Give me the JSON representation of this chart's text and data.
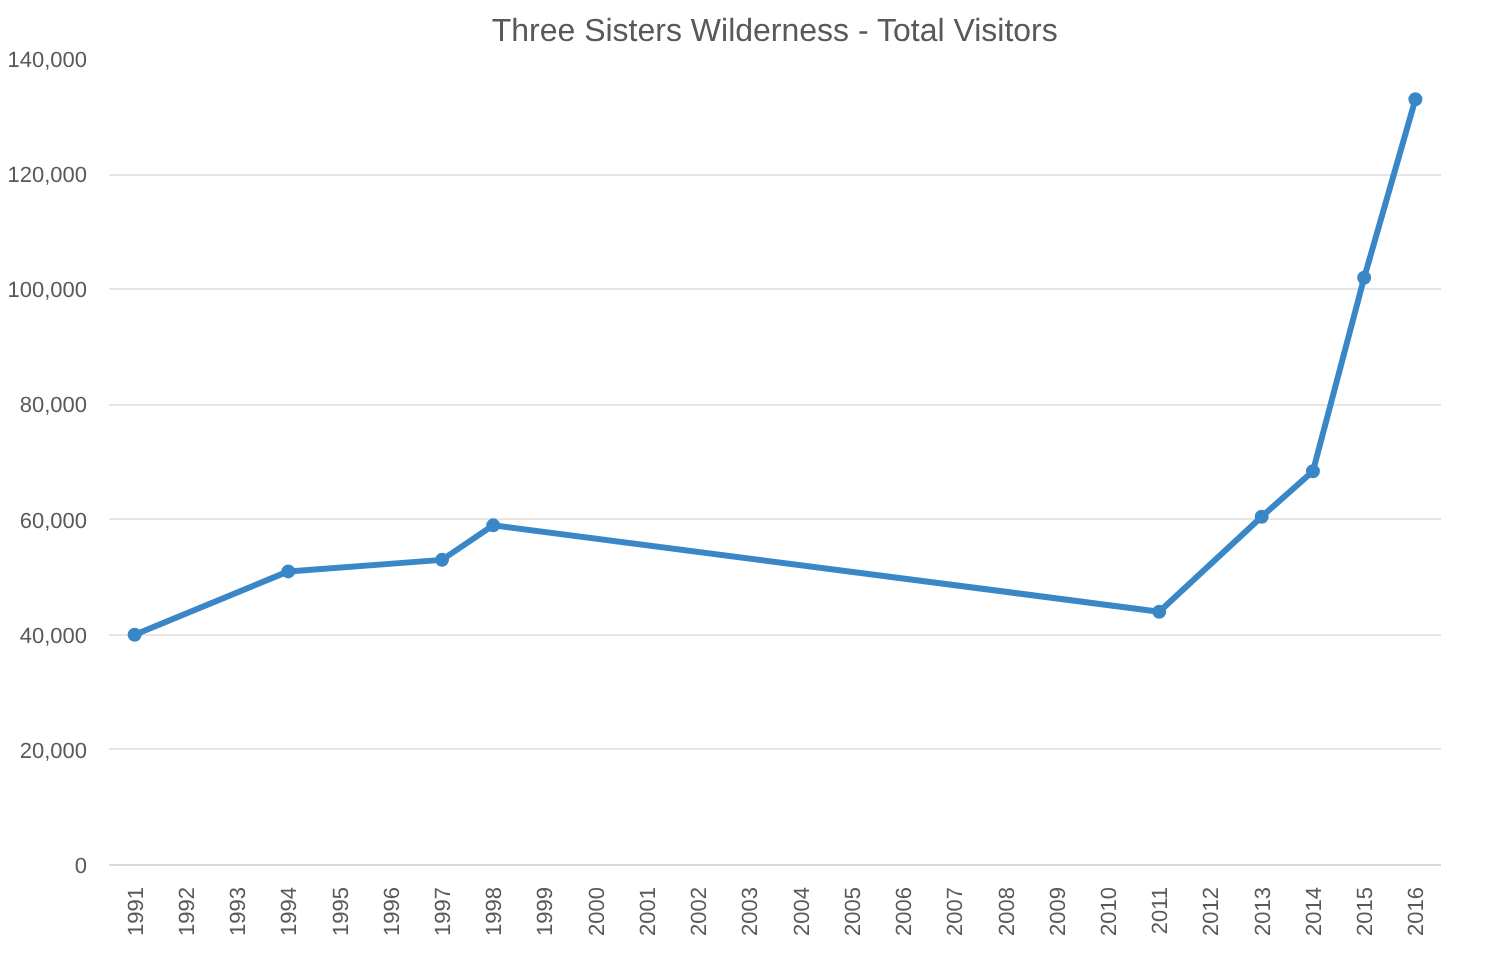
{
  "chart_data": {
    "type": "line",
    "title": "Three Sisters Wilderness - Total Visitors",
    "x": [
      1991,
      1994,
      1997,
      1998,
      2011,
      2013,
      2014,
      2015,
      2016
    ],
    "series": [
      {
        "color": "#3a87c8",
        "values": [
          40000,
          51000,
          53000,
          59000,
          44000,
          60500,
          68400,
          102000,
          133000
        ]
      }
    ],
    "xlim": [
      1990.5,
      2016.5
    ],
    "xticks": [
      1991,
      1992,
      1993,
      1994,
      1995,
      1996,
      1997,
      1998,
      1999,
      2000,
      2001,
      2002,
      2003,
      2004,
      2005,
      2006,
      2007,
      2008,
      2009,
      2010,
      2011,
      2012,
      2013,
      2014,
      2015,
      2016
    ],
    "ylim": [
      0,
      140000
    ],
    "yticks": [
      0,
      {
        "value": 20000,
        "label": "20,000"
      },
      {
        "value": 40000,
        "label": "40,000"
      },
      {
        "value": 60000,
        "label": "60,000"
      },
      {
        "value": 80000,
        "label": "80,000"
      },
      {
        "value": 100000,
        "label": "100,000"
      },
      {
        "value": 120000,
        "label": "120,000"
      },
      {
        "value": 140000,
        "label": "140,000"
      }
    ],
    "grid": "y",
    "marker": "circle",
    "line_style": "solid"
  }
}
